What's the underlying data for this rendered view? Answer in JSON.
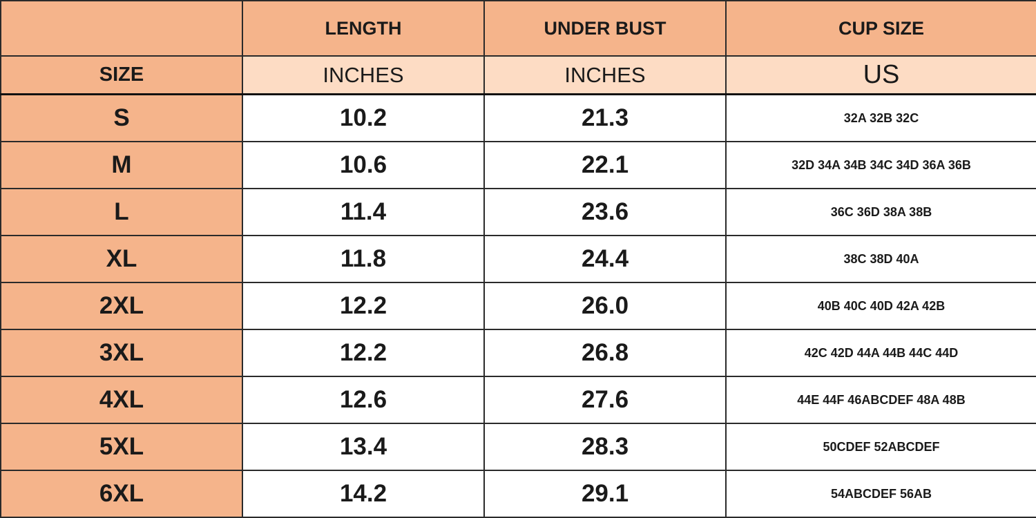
{
  "table": {
    "columns": [
      "LENGTH",
      "UNDER BUST",
      "CUP SIZE"
    ],
    "units": {
      "label": "SIZE",
      "values": [
        "INCHES",
        "INCHES",
        "US"
      ]
    },
    "rows": [
      [
        "S",
        "10.2",
        "21.3",
        "32A 32B 32C"
      ],
      [
        "M",
        "10.6",
        "22.1",
        "32D 34A 34B 34C 34D 36A 36B"
      ],
      [
        "L",
        "11.4",
        "23.6",
        "36C 36D 38A 38B"
      ],
      [
        "XL",
        "11.8",
        "24.4",
        "38C 38D 40A"
      ],
      [
        "2XL",
        "12.2",
        "26.0",
        "40B 40C 40D 42A 42B"
      ],
      [
        "3XL",
        "12.2",
        "26.8",
        "42C 42D 44A 44B 44C 44D"
      ],
      [
        "4XL",
        "12.6",
        "27.6",
        "44E 44F 46ABCDEF 48A 48B"
      ],
      [
        "5XL",
        "13.4",
        "28.3",
        "50CDEF 52ABCDEF"
      ],
      [
        "6XL",
        "14.2",
        "29.1",
        "54ABCDEF 56AB"
      ]
    ]
  }
}
